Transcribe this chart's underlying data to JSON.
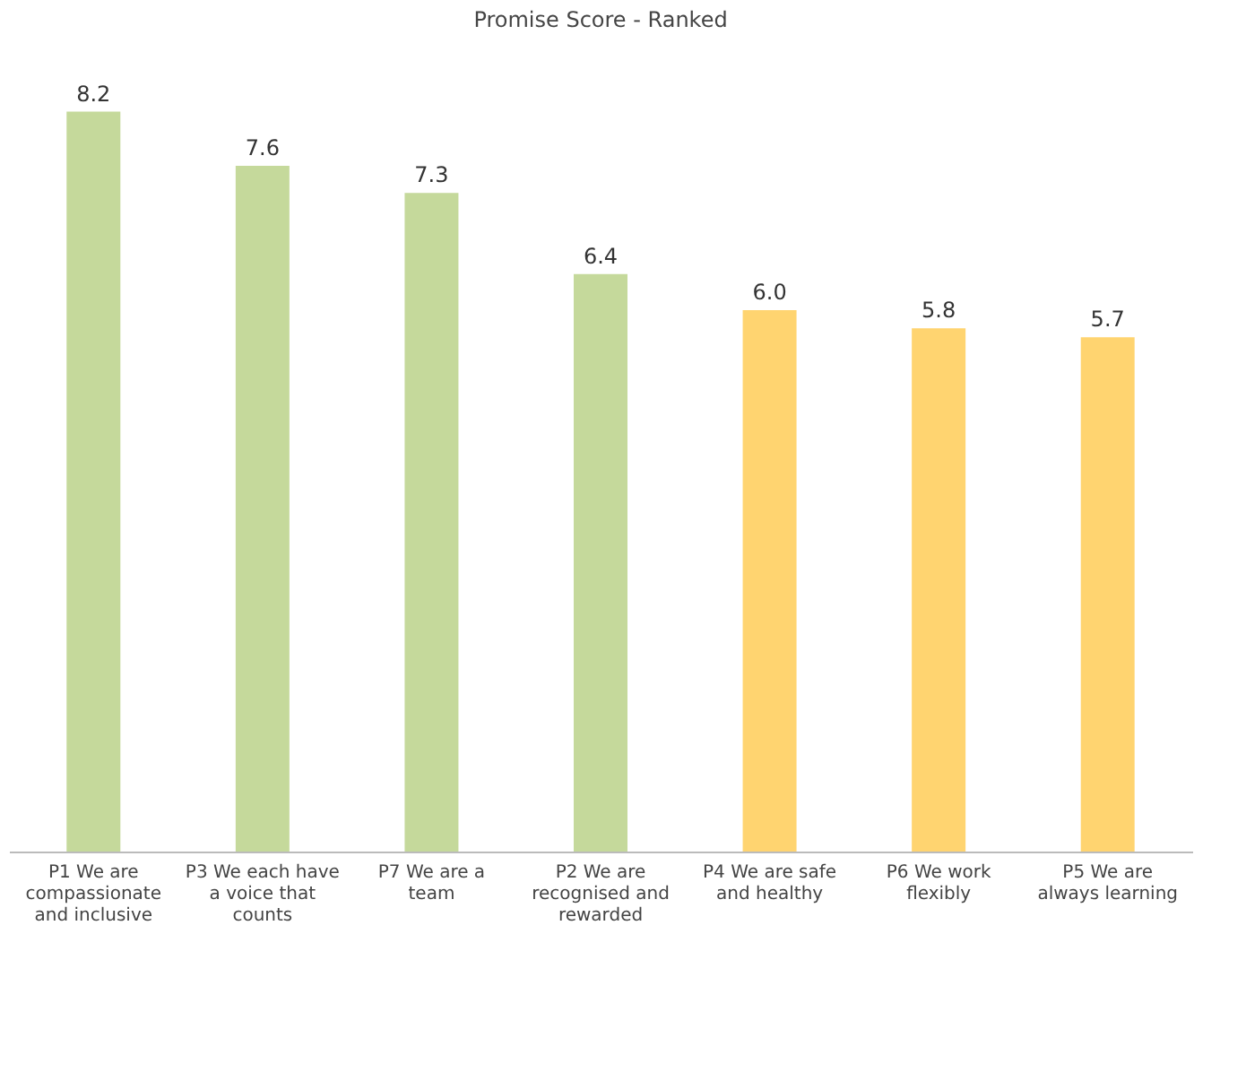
{
  "chart_data": {
    "type": "bar",
    "title": "Promise Score - Ranked",
    "categories": [
      "P1 We are compassionate and inclusive",
      "P3 We each have a voice that counts",
      "P7 We are a team",
      "P2 We are recognised and rewarded",
      "P4 We are safe and healthy",
      "P6 We work flexibly",
      "P5 We are always learning"
    ],
    "values": [
      8.2,
      7.6,
      7.3,
      6.4,
      6.0,
      5.8,
      5.7
    ],
    "colors": [
      "#c5d99b",
      "#c5d99b",
      "#c5d99b",
      "#c5d99b",
      "#ffd470",
      "#ffd470",
      "#ffd470"
    ],
    "value_labels": [
      "8.2",
      "7.6",
      "7.3",
      "6.4",
      "6.0",
      "5.8",
      "5.7"
    ]
  }
}
